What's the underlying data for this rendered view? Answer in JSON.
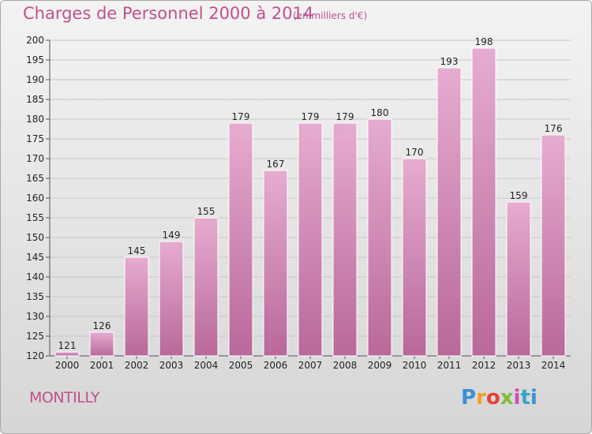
{
  "header": {
    "title": "Charges de Personnel 2000 à 2014",
    "subtitle": "(en milliers d'€)"
  },
  "footer": {
    "commune": "MONTILLY",
    "logo_text": "Proxiti"
  },
  "colors": {
    "bar_light": "#e6acd0",
    "bar_dark": "#b9689a",
    "title": "#c0508c"
  },
  "chart_data": {
    "type": "bar",
    "categories": [
      "2000",
      "2001",
      "2002",
      "2003",
      "2004",
      "2005",
      "2006",
      "2007",
      "2008",
      "2009",
      "2010",
      "2011",
      "2012",
      "2013",
      "2014"
    ],
    "values": [
      121,
      126,
      145,
      149,
      155,
      179,
      167,
      179,
      179,
      180,
      170,
      193,
      198,
      159,
      176
    ],
    "title": "Charges de Personnel 2000 à 2014",
    "subtitle": "(en milliers d'€)",
    "ylim": [
      120,
      200
    ],
    "yticks": [
      120,
      125,
      130,
      135,
      140,
      145,
      150,
      155,
      160,
      165,
      170,
      175,
      180,
      185,
      190,
      195,
      200
    ],
    "grid": true,
    "data_labels": true
  }
}
